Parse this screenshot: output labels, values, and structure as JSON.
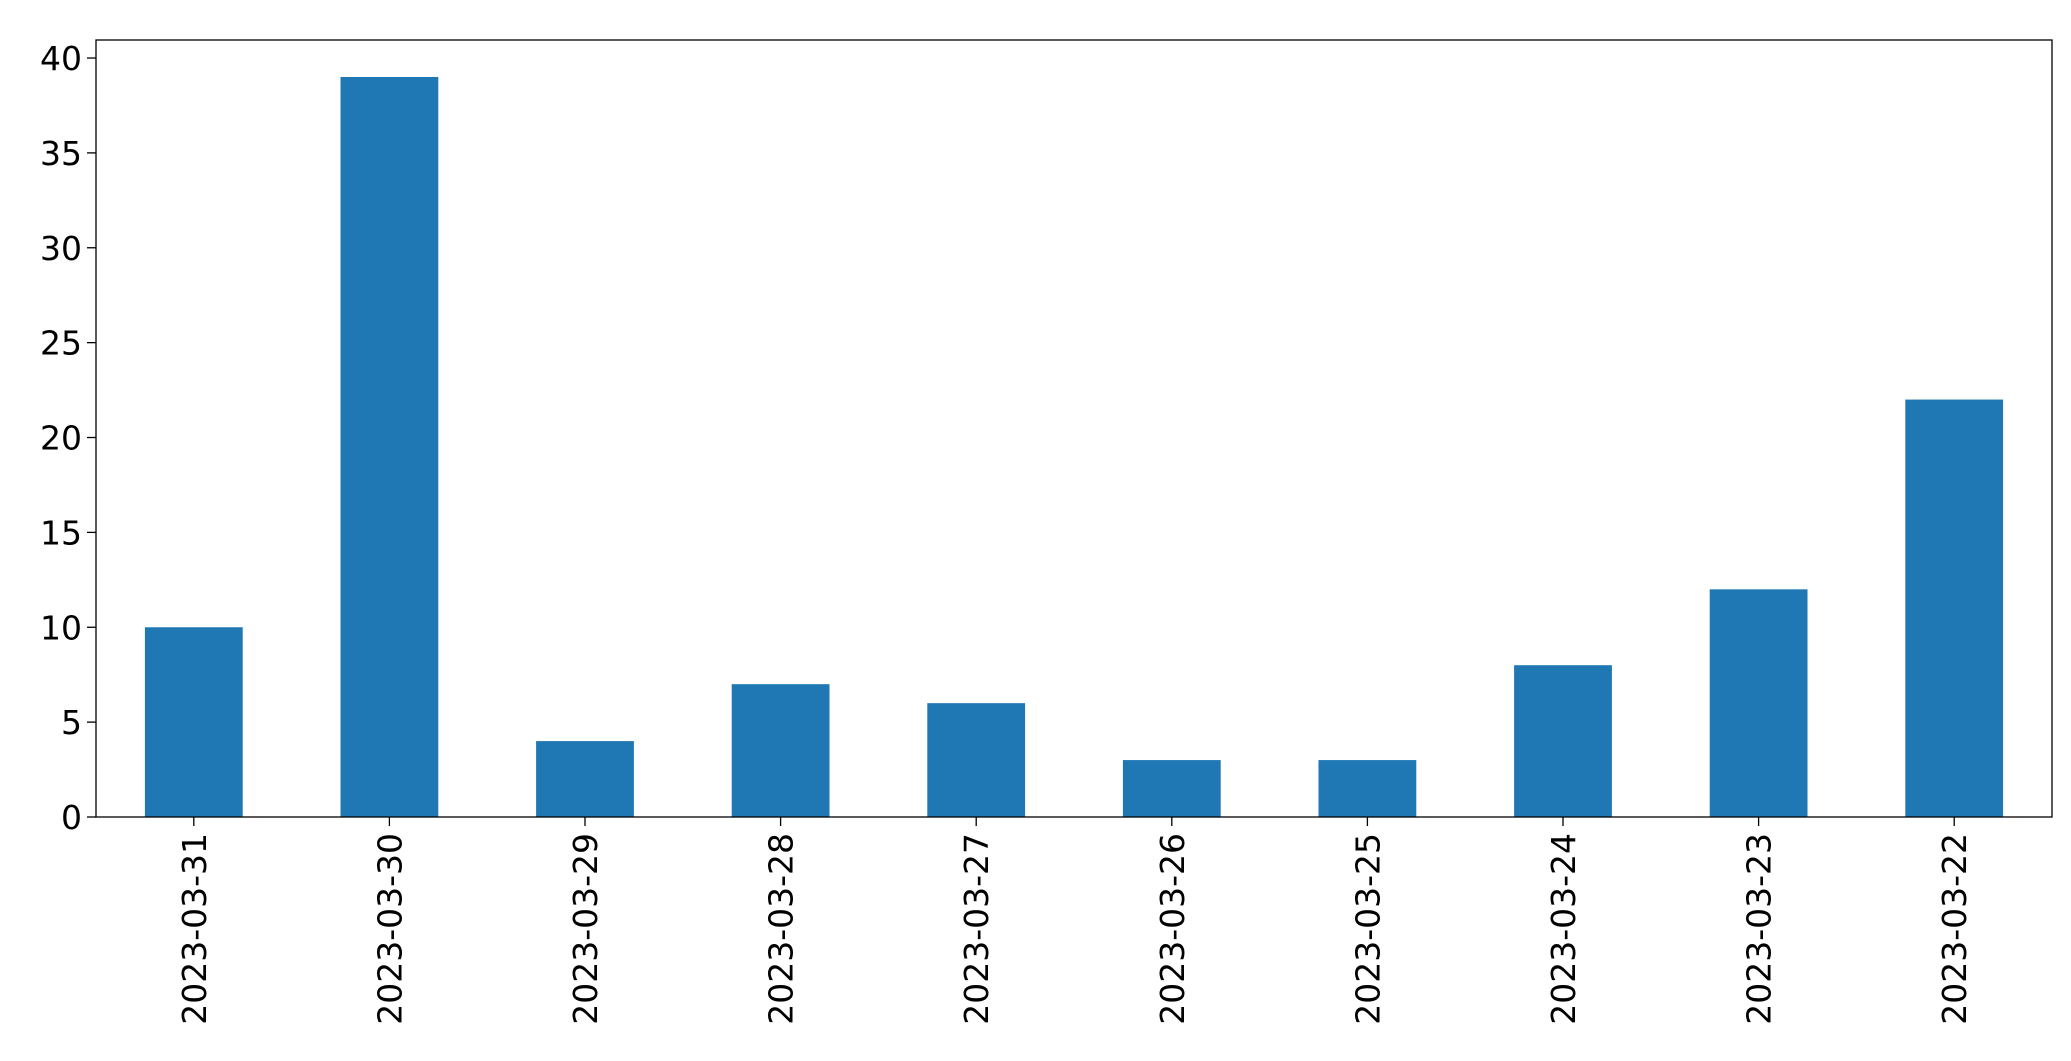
{
  "chart_data": {
    "type": "bar",
    "categories": [
      "2023-03-31",
      "2023-03-30",
      "2023-03-29",
      "2023-03-28",
      "2023-03-27",
      "2023-03-26",
      "2023-03-25",
      "2023-03-24",
      "2023-03-23",
      "2023-03-22"
    ],
    "values": [
      10,
      39,
      4,
      7,
      6,
      3,
      3,
      8,
      12,
      22
    ],
    "color": "#1f77b4",
    "ylim": [
      0,
      40.95
    ],
    "yticks": [
      0,
      5,
      10,
      15,
      20,
      25,
      30,
      35,
      40
    ],
    "grid": false
  }
}
